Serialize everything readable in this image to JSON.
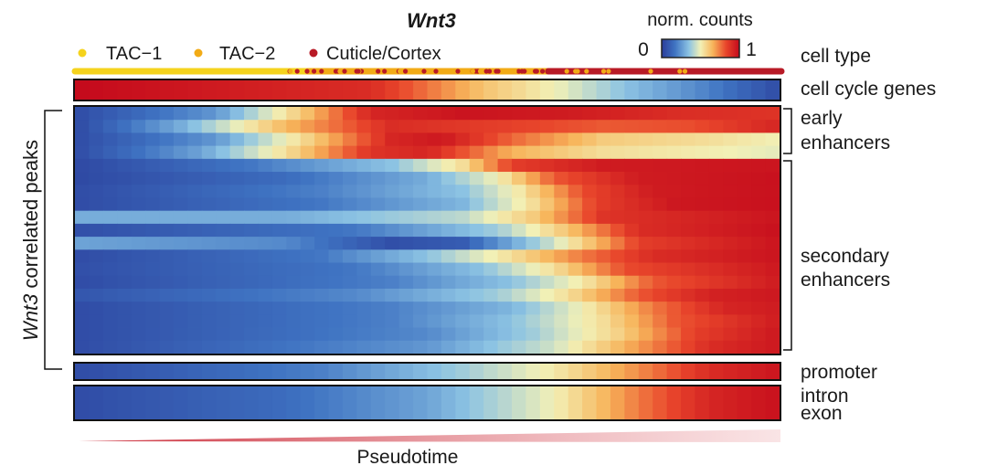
{
  "chart_data": {
    "type": "heatmap",
    "title": "Wnt3",
    "xlabel": "Pseudotime",
    "ylabel_italic": "Wnt3",
    "ylabel_rest": " correlated peaks",
    "color_scale": {
      "title": "norm. counts",
      "min_label": "0",
      "max_label": "1",
      "range": [
        0,
        1
      ],
      "stops": [
        "#2a3c9a",
        "#3f73c2",
        "#8cc3e3",
        "#f2f0b6",
        "#f7b45a",
        "#e8452b",
        "#c40a1c"
      ]
    },
    "cell_type": {
      "label": "cell type",
      "legend": [
        {
          "name": "TAC−1",
          "color": "#f5d31d"
        },
        {
          "name": "TAC−2",
          "color": "#f2ab16"
        },
        {
          "name": "Cuticle/Cortex",
          "color": "#b81a26"
        }
      ],
      "regions": [
        {
          "from": 0.0,
          "to": 0.33,
          "type": "TAC−1"
        },
        {
          "from": 0.33,
          "to": 0.67,
          "type": "TAC−2"
        },
        {
          "from": 0.67,
          "to": 1.0,
          "type": "Cuticle/Cortex"
        }
      ]
    },
    "cell_cycle": {
      "label": "cell cycle genes",
      "profile": [
        [
          0,
          1.0
        ],
        [
          0.42,
          0.9
        ],
        [
          0.58,
          0.62
        ],
        [
          0.68,
          0.5
        ],
        [
          0.78,
          0.35
        ],
        [
          0.9,
          0.2
        ],
        [
          1.0,
          0.05
        ]
      ]
    },
    "peak_groups": [
      {
        "label_lines": [
          "early",
          "enhancers"
        ],
        "rows": 4
      },
      {
        "label_lines": [
          "secondary",
          "enhancers"
        ],
        "rows": 15
      }
    ],
    "peak_profiles": [
      [
        [
          0,
          0.05
        ],
        [
          0.2,
          0.25
        ],
        [
          0.32,
          0.6
        ],
        [
          0.42,
          0.92
        ],
        [
          0.55,
          0.97
        ],
        [
          0.7,
          0.95
        ],
        [
          0.85,
          0.9
        ],
        [
          1.0,
          0.88
        ]
      ],
      [
        [
          0,
          0.04
        ],
        [
          0.15,
          0.3
        ],
        [
          0.3,
          0.65
        ],
        [
          0.45,
          0.9
        ],
        [
          0.6,
          0.85
        ],
        [
          0.75,
          0.8
        ],
        [
          0.88,
          0.82
        ],
        [
          1.0,
          0.92
        ]
      ],
      [
        [
          0,
          0.05
        ],
        [
          0.2,
          0.25
        ],
        [
          0.32,
          0.55
        ],
        [
          0.45,
          0.92
        ],
        [
          0.52,
          0.96
        ],
        [
          0.62,
          0.78
        ],
        [
          0.75,
          0.6
        ],
        [
          0.9,
          0.55
        ],
        [
          1.0,
          0.5
        ]
      ],
      [
        [
          0,
          0.05
        ],
        [
          0.18,
          0.28
        ],
        [
          0.3,
          0.55
        ],
        [
          0.42,
          0.88
        ],
        [
          0.5,
          0.92
        ],
        [
          0.62,
          0.66
        ],
        [
          0.75,
          0.55
        ],
        [
          1.0,
          0.48
        ]
      ],
      [
        [
          0,
          0.04
        ],
        [
          0.25,
          0.18
        ],
        [
          0.45,
          0.35
        ],
        [
          0.55,
          0.55
        ],
        [
          0.62,
          0.85
        ],
        [
          0.75,
          0.95
        ],
        [
          1.0,
          0.97
        ]
      ],
      [
        [
          0,
          0.04
        ],
        [
          0.3,
          0.15
        ],
        [
          0.5,
          0.3
        ],
        [
          0.6,
          0.5
        ],
        [
          0.68,
          0.8
        ],
        [
          0.8,
          0.95
        ],
        [
          1.0,
          0.98
        ]
      ],
      [
        [
          0,
          0.05
        ],
        [
          0.35,
          0.2
        ],
        [
          0.55,
          0.35
        ],
        [
          0.63,
          0.52
        ],
        [
          0.72,
          0.82
        ],
        [
          0.82,
          0.95
        ],
        [
          1.0,
          0.98
        ]
      ],
      [
        [
          0,
          0.05
        ],
        [
          0.35,
          0.18
        ],
        [
          0.55,
          0.32
        ],
        [
          0.65,
          0.55
        ],
        [
          0.74,
          0.85
        ],
        [
          0.85,
          0.96
        ],
        [
          1.0,
          0.98
        ]
      ],
      [
        [
          0,
          0.3
        ],
        [
          0.3,
          0.3
        ],
        [
          0.55,
          0.42
        ],
        [
          0.65,
          0.6
        ],
        [
          0.75,
          0.88
        ],
        [
          1.0,
          0.97
        ]
      ],
      [
        [
          0,
          0.06
        ],
        [
          0.4,
          0.18
        ],
        [
          0.6,
          0.38
        ],
        [
          0.7,
          0.62
        ],
        [
          0.8,
          0.9
        ],
        [
          1.0,
          0.98
        ]
      ],
      [
        [
          0,
          0.28
        ],
        [
          0.3,
          0.22
        ],
        [
          0.45,
          0.06
        ],
        [
          0.55,
          0.1
        ],
        [
          0.68,
          0.45
        ],
        [
          0.8,
          0.85
        ],
        [
          1.0,
          0.97
        ]
      ],
      [
        [
          0,
          0.05
        ],
        [
          0.35,
          0.18
        ],
        [
          0.5,
          0.35
        ],
        [
          0.62,
          0.55
        ],
        [
          0.72,
          0.75
        ],
        [
          0.82,
          0.9
        ],
        [
          1.0,
          0.97
        ]
      ],
      [
        [
          0,
          0.06
        ],
        [
          0.4,
          0.18
        ],
        [
          0.58,
          0.35
        ],
        [
          0.68,
          0.55
        ],
        [
          0.78,
          0.82
        ],
        [
          1.0,
          0.96
        ]
      ],
      [
        [
          0,
          0.05
        ],
        [
          0.45,
          0.2
        ],
        [
          0.62,
          0.35
        ],
        [
          0.72,
          0.52
        ],
        [
          0.82,
          0.8
        ],
        [
          1.0,
          0.95
        ]
      ],
      [
        [
          0,
          0.08
        ],
        [
          0.4,
          0.22
        ],
        [
          0.6,
          0.38
        ],
        [
          0.7,
          0.55
        ],
        [
          0.8,
          0.8
        ],
        [
          0.9,
          0.93
        ],
        [
          1.0,
          0.96
        ]
      ],
      [
        [
          0,
          0.05
        ],
        [
          0.45,
          0.2
        ],
        [
          0.62,
          0.32
        ],
        [
          0.72,
          0.5
        ],
        [
          0.82,
          0.75
        ],
        [
          0.92,
          0.92
        ],
        [
          1.0,
          0.95
        ]
      ],
      [
        [
          0,
          0.05
        ],
        [
          0.45,
          0.2
        ],
        [
          0.62,
          0.35
        ],
        [
          0.75,
          0.55
        ],
        [
          0.85,
          0.8
        ],
        [
          1.0,
          0.95
        ]
      ],
      [
        [
          0,
          0.05
        ],
        [
          0.5,
          0.22
        ],
        [
          0.65,
          0.38
        ],
        [
          0.77,
          0.58
        ],
        [
          0.88,
          0.85
        ],
        [
          1.0,
          0.96
        ]
      ],
      [
        [
          0,
          0.05
        ],
        [
          0.5,
          0.25
        ],
        [
          0.68,
          0.45
        ],
        [
          0.8,
          0.7
        ],
        [
          0.9,
          0.9
        ],
        [
          1.0,
          0.96
        ]
      ]
    ],
    "bottom_tracks": [
      {
        "label_lines": [
          "promoter"
        ],
        "profile": [
          [
            0,
            0.05
          ],
          [
            0.35,
            0.2
          ],
          [
            0.55,
            0.38
          ],
          [
            0.68,
            0.52
          ],
          [
            0.8,
            0.72
          ],
          [
            0.9,
            0.9
          ],
          [
            1.0,
            0.97
          ]
        ]
      },
      {
        "label_lines": [
          "intron",
          "exon"
        ],
        "profile": [
          [
            0,
            0.05
          ],
          [
            0.3,
            0.15
          ],
          [
            0.5,
            0.28
          ],
          [
            0.68,
            0.5
          ],
          [
            0.8,
            0.75
          ],
          [
            0.9,
            0.92
          ],
          [
            1.0,
            0.98
          ]
        ]
      }
    ],
    "n_bins": 50
  }
}
